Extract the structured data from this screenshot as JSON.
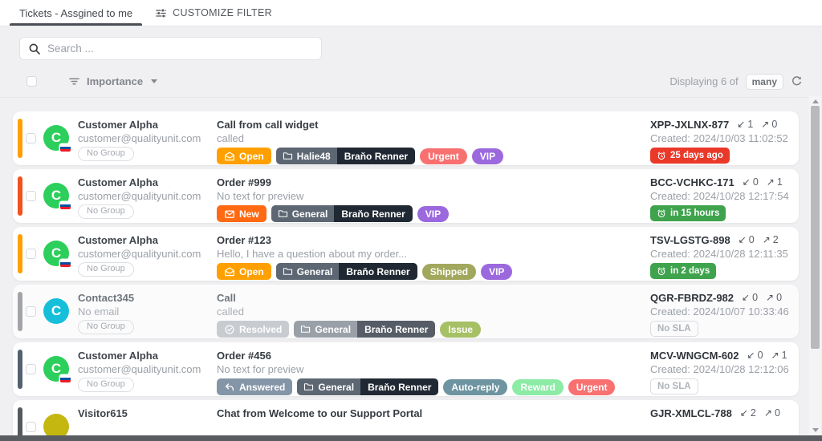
{
  "tabs": {
    "active": "Tickets - Assgined to me",
    "customize": "CUSTOMIZE FILTER"
  },
  "search": {
    "placeholder": "Search ..."
  },
  "toolbar": {
    "sort_label": "Importance",
    "displaying_label": "Displaying 6 of",
    "count_badge": "many"
  },
  "tickets": [
    {
      "bar_color": "#FFA000",
      "avatar": {
        "letter": "C",
        "color": "#2CCF5B",
        "flag": true
      },
      "name": "Customer Alpha",
      "email": "customer@qualityunit.com",
      "group_badge": "No Group",
      "subject": "Call from call widget",
      "preview": "called",
      "status": {
        "label": "Open",
        "bg": "#FFA000",
        "icon": "envelope-open"
      },
      "assignment": {
        "group": "Halie48",
        "agent": "Braňo Renner",
        "group_bg": "#5D6773",
        "agent_bg": "#202933"
      },
      "tags": [
        {
          "label": "Urgent",
          "bg": "#F87070",
          "fg": "#FFFFFF"
        },
        {
          "label": "VIP",
          "bg": "#9B69DD",
          "fg": "#FFFFFF"
        }
      ],
      "code": "XPP-JXLNX-877",
      "incoming": "1",
      "outgoing": "0",
      "created": "Created: 2024/10/03 11:02:52",
      "sla": {
        "label": "25 days ago",
        "bg": "#EA3829"
      },
      "muted": false
    },
    {
      "bar_color": "#F4511E",
      "avatar": {
        "letter": "C",
        "color": "#2CCF5B",
        "flag": true
      },
      "name": "Customer Alpha",
      "email": "customer@qualityunit.com",
      "group_badge": "No Group",
      "subject": "Order #999",
      "preview": "No text for preview",
      "status": {
        "label": "New",
        "bg": "#FF6A13",
        "icon": "envelope"
      },
      "assignment": {
        "group": "General",
        "agent": "Braňo Renner",
        "group_bg": "#5D6773",
        "agent_bg": "#202933"
      },
      "tags": [
        {
          "label": "VIP",
          "bg": "#9B69DD",
          "fg": "#FFFFFF"
        }
      ],
      "code": "BCC-VCHKC-171",
      "incoming": "0",
      "outgoing": "1",
      "created": "Created: 2024/10/28 12:17:54",
      "sla": {
        "label": "in 15 hours",
        "bg": "#3FA34D"
      },
      "muted": false
    },
    {
      "bar_color": "#FFA000",
      "avatar": {
        "letter": "C",
        "color": "#2CCF5B",
        "flag": true
      },
      "name": "Customer Alpha",
      "email": "customer@qualityunit.com",
      "group_badge": "No Group",
      "subject": "Order #123",
      "preview": "Hello, I have a question about my order...",
      "status": {
        "label": "Open",
        "bg": "#FFA000",
        "icon": "envelope-open"
      },
      "assignment": {
        "group": "General",
        "agent": "Braňo Renner",
        "group_bg": "#5D6773",
        "agent_bg": "#202933"
      },
      "tags": [
        {
          "label": "Shipped",
          "bg": "#A1A75C",
          "fg": "#FFFFFF"
        },
        {
          "label": "VIP",
          "bg": "#9B69DD",
          "fg": "#FFFFFF"
        }
      ],
      "code": "TSV-LGSTG-898",
      "incoming": "0",
      "outgoing": "2",
      "created": "Created: 2024/10/28 12:11:35",
      "sla": {
        "label": "in 2 days",
        "bg": "#3FA34D"
      },
      "muted": false
    },
    {
      "bar_color": "#A2A4A7",
      "avatar": {
        "letter": "C",
        "color": "#15BFD9",
        "flag": false
      },
      "name": "Contact345",
      "email": "No email",
      "group_badge": "No Group",
      "subject": "Call",
      "preview": "called",
      "status": {
        "label": "Resolved",
        "bg": "#C8CBD0",
        "icon": "check-circle"
      },
      "assignment": {
        "group": "General",
        "agent": "Braňo Renner",
        "group_bg": "#9AA0A8",
        "agent_bg": "#565D66"
      },
      "tags": [
        {
          "label": "Issue",
          "bg": "#A6C065",
          "fg": "#FFFFFF"
        }
      ],
      "code": "QGR-FBRDZ-982",
      "incoming": "0",
      "outgoing": "0",
      "created": "Created: 2024/10/07 10:33:46",
      "sla": {
        "label": "No SLA",
        "bg": null
      },
      "muted": true
    },
    {
      "bar_color": "#53616F",
      "avatar": {
        "letter": "C",
        "color": "#2CCF5B",
        "flag": true
      },
      "name": "Customer Alpha",
      "email": "customer@qualityunit.com",
      "group_badge": "No Group",
      "subject": "Order #456",
      "preview": "No text for preview",
      "status": {
        "label": "Answered",
        "bg": "#8495A7",
        "icon": "reply"
      },
      "assignment": {
        "group": "General",
        "agent": "Braňo Renner",
        "group_bg": "#5D6773",
        "agent_bg": "#202933"
      },
      "tags": [
        {
          "label": "Auto-reply",
          "bg": "#6D94A0",
          "fg": "#FFFFFF"
        },
        {
          "label": "Reward",
          "bg": "#8CEBA5",
          "fg": "#FFFFFF"
        },
        {
          "label": "Urgent",
          "bg": "#F87070",
          "fg": "#FFFFFF"
        }
      ],
      "code": "MCV-WNGCM-602",
      "incoming": "0",
      "outgoing": "1",
      "created": "Created: 2024/10/28 12:12:06",
      "sla": {
        "label": "No SLA",
        "bg": null
      },
      "muted": false
    },
    {
      "bar_color": "#55595E",
      "avatar": {
        "letter": "",
        "color": "#C4B70F",
        "flag": false
      },
      "name": "Visitor615",
      "email": "",
      "group_badge": "",
      "subject": "Chat from Welcome to our Support Portal",
      "preview": "",
      "status": null,
      "assignment": null,
      "tags": [],
      "code": "GJR-XMLCL-788",
      "incoming": "2",
      "outgoing": "0",
      "created": "",
      "sla": null,
      "muted": false
    }
  ]
}
